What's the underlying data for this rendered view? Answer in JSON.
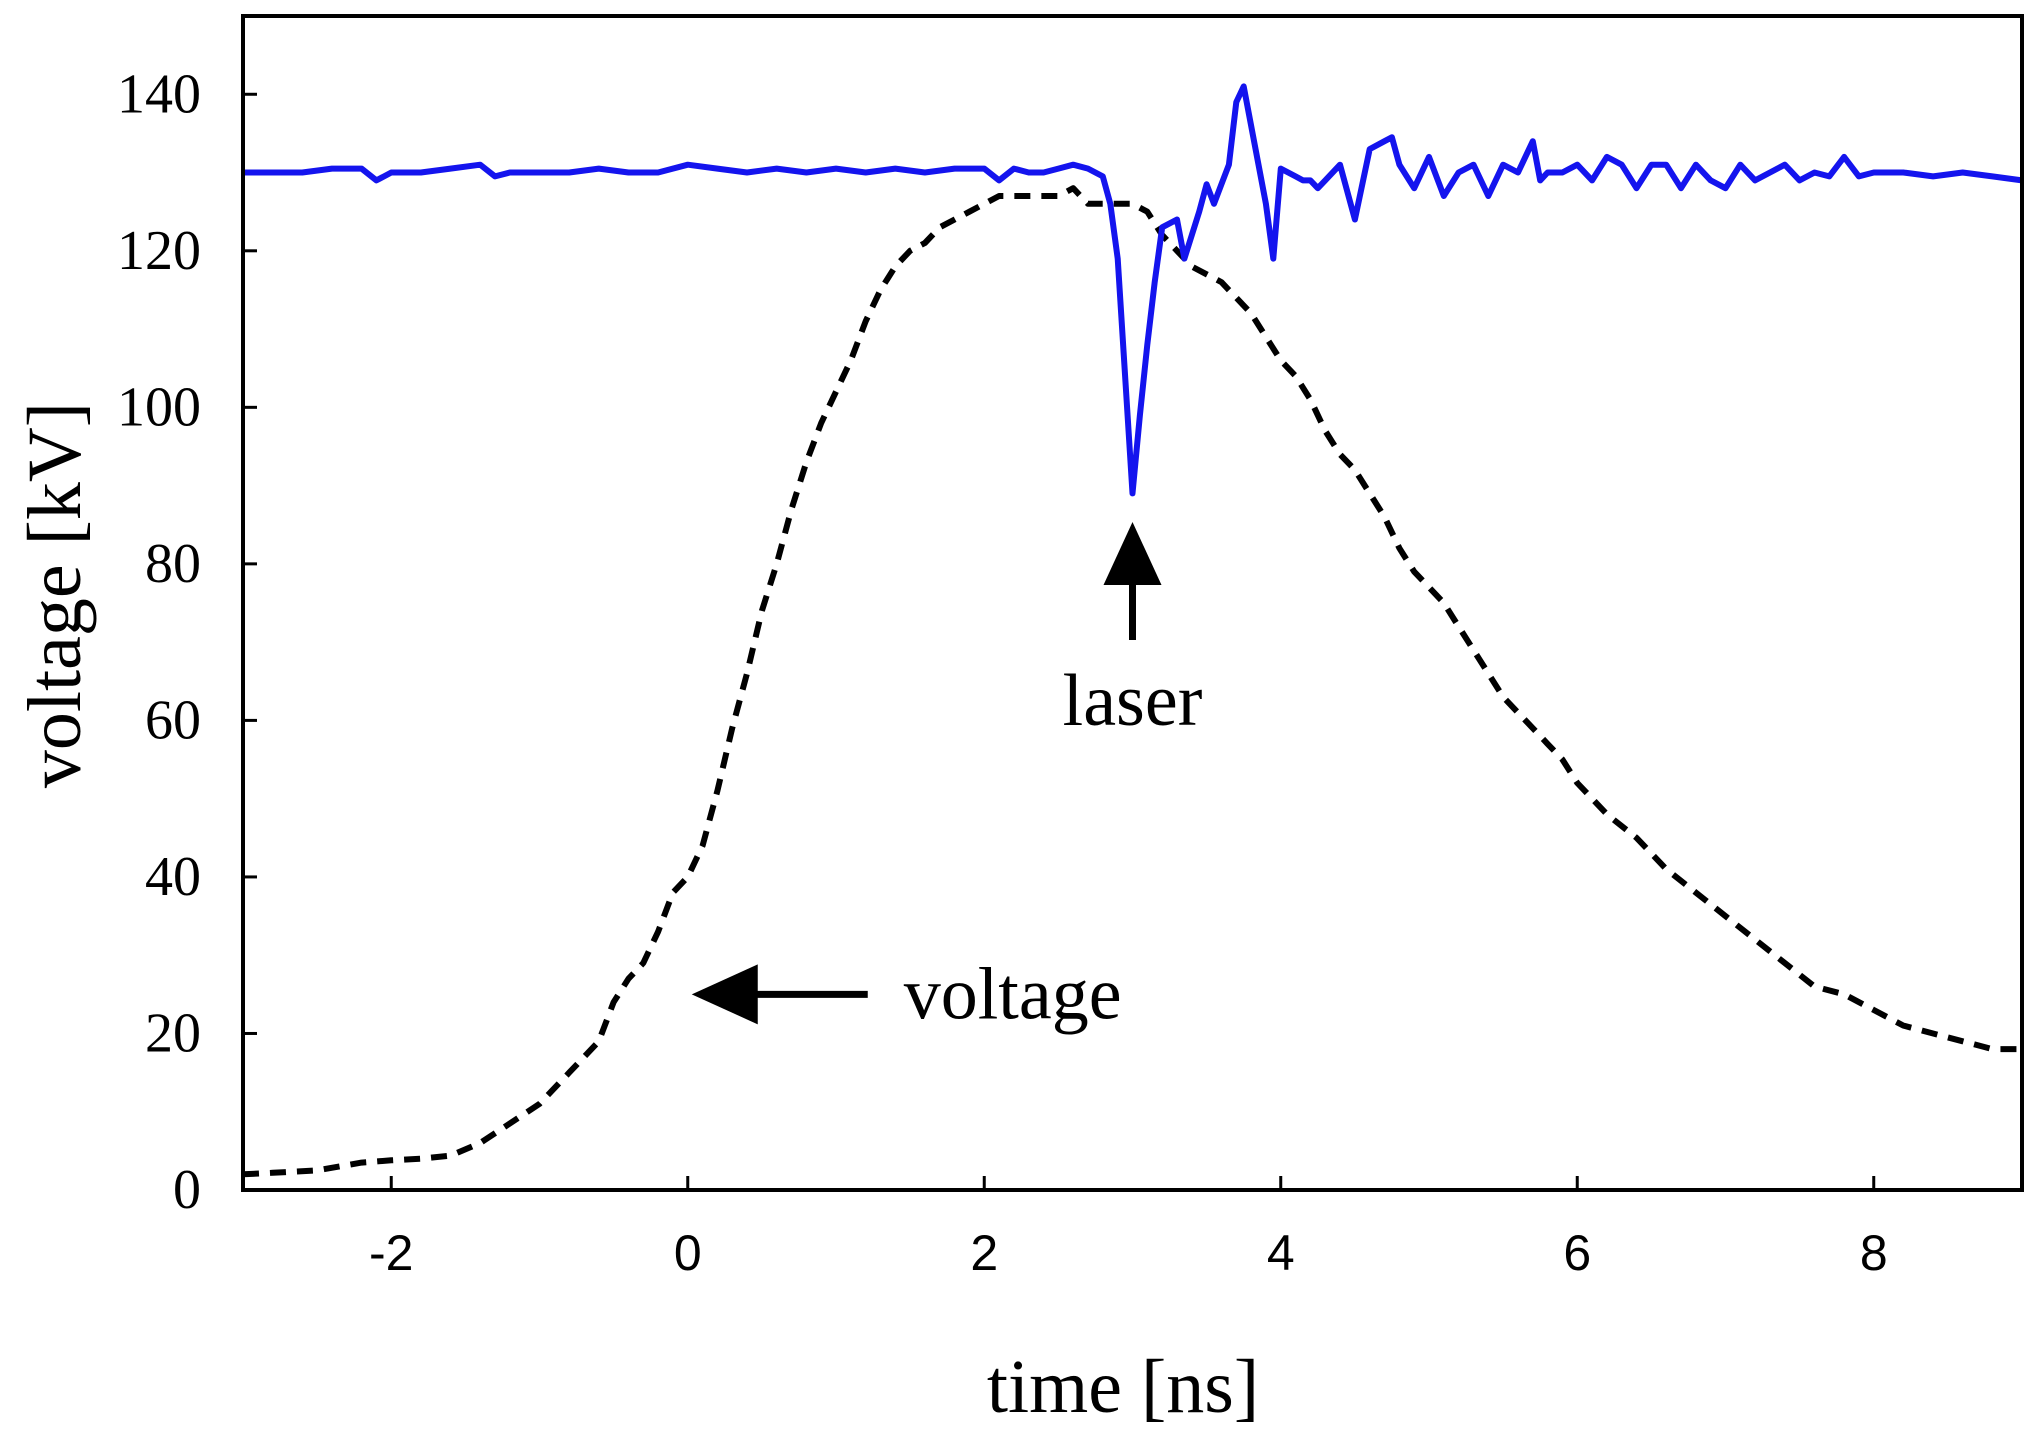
{
  "chart_data": {
    "type": "line",
    "xlabel": "time [ns]",
    "ylabel": "voltage [kV]",
    "xlim": [
      -3,
      9
    ],
    "ylim": [
      0,
      150
    ],
    "x_ticks": [
      -2,
      0,
      2,
      4,
      6,
      8
    ],
    "y_ticks": [
      0,
      20,
      40,
      60,
      80,
      100,
      120,
      140
    ],
    "grid": false,
    "legend": "none",
    "series": [
      {
        "style": "dashed",
        "color": "#000000",
        "x": [
          -3,
          -2.8,
          -2.5,
          -2.2,
          -2.0,
          -1.8,
          -1.6,
          -1.4,
          -1.2,
          -1.0,
          -0.8,
          -0.6,
          -0.5,
          -0.4,
          -0.3,
          -0.2,
          -0.1,
          0.0,
          0.1,
          0.2,
          0.3,
          0.4,
          0.5,
          0.6,
          0.7,
          0.8,
          0.9,
          1.0,
          1.1,
          1.2,
          1.3,
          1.4,
          1.5,
          1.6,
          1.7,
          1.8,
          1.9,
          2.0,
          2.1,
          2.2,
          2.3,
          2.4,
          2.5,
          2.6,
          2.7,
          2.8,
          2.9,
          3.0,
          3.1,
          3.2,
          3.3,
          3.4,
          3.5,
          3.6,
          3.7,
          3.8,
          3.9,
          4.0,
          4.1,
          4.2,
          4.3,
          4.4,
          4.5,
          4.6,
          4.7,
          4.8,
          4.9,
          5.0,
          5.1,
          5.2,
          5.3,
          5.4,
          5.5,
          5.6,
          5.7,
          5.8,
          5.9,
          6.0,
          6.2,
          6.4,
          6.6,
          6.8,
          7.0,
          7.2,
          7.4,
          7.6,
          7.8,
          8.0,
          8.2,
          8.4,
          8.6,
          8.8,
          9.0
        ],
        "y": [
          2,
          2.2,
          2.5,
          3.5,
          3.8,
          4,
          4.4,
          6,
          8.5,
          11,
          15,
          19,
          24,
          27,
          29,
          33,
          38,
          40,
          44,
          51,
          59,
          66,
          74,
          80,
          87,
          93,
          98,
          102,
          106,
          111,
          115,
          118,
          120,
          121,
          123,
          124,
          125,
          126,
          127,
          127,
          127,
          127,
          127,
          128,
          126,
          126,
          126,
          126,
          125,
          122,
          120,
          118,
          117,
          116,
          114,
          112,
          109,
          106,
          104,
          101,
          97,
          94,
          92,
          89,
          86,
          82,
          79,
          77,
          75,
          72,
          69,
          66,
          63,
          61,
          59,
          57,
          55,
          52,
          48,
          45,
          41,
          38,
          35,
          32,
          29,
          26,
          25,
          23,
          21,
          20,
          19,
          18,
          18
        ]
      },
      {
        "style": "solid",
        "color": "#1414ee",
        "x": [
          -3,
          -2.8,
          -2.6,
          -2.4,
          -2.2,
          -2.1,
          -2.0,
          -1.8,
          -1.6,
          -1.4,
          -1.3,
          -1.2,
          -1.0,
          -0.8,
          -0.6,
          -0.4,
          -0.2,
          0.0,
          0.2,
          0.4,
          0.6,
          0.8,
          1.0,
          1.2,
          1.4,
          1.6,
          1.8,
          2.0,
          2.1,
          2.2,
          2.3,
          2.4,
          2.5,
          2.6,
          2.7,
          2.8,
          2.85,
          2.9,
          2.95,
          3.0,
          3.05,
          3.1,
          3.15,
          3.2,
          3.3,
          3.35,
          3.4,
          3.45,
          3.5,
          3.55,
          3.6,
          3.65,
          3.7,
          3.75,
          3.8,
          3.85,
          3.9,
          3.95,
          4.0,
          4.05,
          4.1,
          4.15,
          4.2,
          4.25,
          4.3,
          4.4,
          4.5,
          4.6,
          4.7,
          4.75,
          4.8,
          4.9,
          5.0,
          5.1,
          5.2,
          5.3,
          5.4,
          5.5,
          5.6,
          5.7,
          5.75,
          5.8,
          5.9,
          6.0,
          6.1,
          6.2,
          6.3,
          6.4,
          6.5,
          6.6,
          6.7,
          6.8,
          6.9,
          7.0,
          7.1,
          7.2,
          7.3,
          7.4,
          7.5,
          7.6,
          7.7,
          7.8,
          7.9,
          8.0,
          8.2,
          8.4,
          8.6,
          8.8,
          9.0
        ],
        "y": [
          130,
          130,
          130,
          130.5,
          130.5,
          129,
          130,
          130,
          130.5,
          131,
          129.5,
          130,
          130,
          130,
          130.5,
          130,
          130,
          131,
          130.5,
          130,
          130.5,
          130,
          130.5,
          130,
          130.5,
          130,
          130.5,
          130.5,
          129,
          130.5,
          130,
          130,
          130.5,
          131,
          130.5,
          129.5,
          126,
          119,
          104,
          89,
          99,
          108,
          116,
          123,
          124,
          119,
          122,
          125,
          128.5,
          126,
          128.5,
          131,
          139,
          141,
          136,
          131,
          126,
          119,
          130.5,
          130,
          129.5,
          129,
          129,
          128,
          129,
          131,
          124,
          133,
          134,
          134.5,
          131,
          128,
          132,
          127,
          130,
          131,
          127,
          131,
          130,
          134,
          129,
          130,
          130,
          131,
          129,
          132,
          131,
          128,
          131,
          131,
          128,
          131,
          129,
          128,
          131,
          129,
          130,
          131,
          129,
          130,
          129.5,
          132,
          129.5,
          130,
          130,
          129.5,
          130,
          129.5,
          129
        ]
      }
    ],
    "annotations": [
      {
        "text": "laser",
        "arrow": "up",
        "at_x": 3.0
      },
      {
        "text": "voltage",
        "arrow": "left",
        "at_x": 0.0,
        "at_y": 25
      }
    ]
  }
}
